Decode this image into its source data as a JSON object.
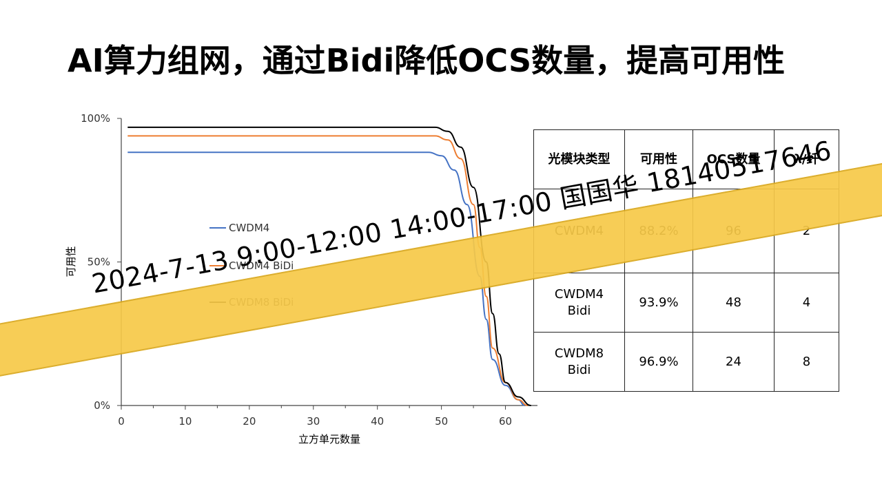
{
  "title": "AI算力组网，通过Bidi降低OCS数量，提高可用性",
  "chart_data": {
    "type": "line",
    "xlabel": "立方单元数量",
    "ylabel": "可用性",
    "xlim": [
      0,
      65
    ],
    "ylim": [
      0,
      100
    ],
    "x_ticks": [
      "0",
      "10",
      "20",
      "30",
      "40",
      "50",
      "60"
    ],
    "y_ticks": [
      "0%",
      "50%",
      "100%"
    ],
    "legend_position": "center-left",
    "series": [
      {
        "name": "CWDM4",
        "color": "#4472c4",
        "x": [
          1,
          10,
          20,
          30,
          40,
          48,
          50,
          52,
          54,
          56,
          57,
          58,
          60,
          62,
          63
        ],
        "values": [
          88.2,
          88.2,
          88.2,
          88.2,
          88.2,
          88.2,
          87,
          82,
          70,
          45,
          30,
          16,
          7,
          2,
          0
        ]
      },
      {
        "name": "CWDM4 BiDi",
        "color": "#ed7d31",
        "x": [
          1,
          10,
          20,
          30,
          40,
          49,
          51,
          53,
          55,
          56,
          57,
          58,
          60,
          62,
          63.5
        ],
        "values": [
          93.9,
          93.9,
          93.9,
          93.9,
          93.9,
          93.9,
          92.5,
          86,
          70,
          55,
          38,
          20,
          8,
          2,
          0
        ]
      },
      {
        "name": "CWDM8 BiDi",
        "color": "#000000",
        "x": [
          1,
          10,
          20,
          30,
          40,
          49,
          51,
          53,
          55,
          57,
          58,
          59,
          60,
          62,
          64
        ],
        "values": [
          96.9,
          96.9,
          96.9,
          96.9,
          96.9,
          96.9,
          95.5,
          90,
          76,
          50,
          32,
          18,
          8,
          3,
          0
        ]
      }
    ]
  },
  "table": {
    "headers": [
      "光模块类型",
      "可用性",
      "OCS数量",
      "λ/纤"
    ],
    "rows": [
      [
        "CWDM4",
        "88.2%",
        "96",
        "2"
      ],
      [
        "CWDM4\nBidi",
        "93.9%",
        "48",
        "4"
      ],
      [
        "CWDM8\nBidi",
        "96.9%",
        "24",
        "8"
      ]
    ]
  },
  "banner": {
    "text": "2024-7-13   9:00-12:00  14:00-17:00  国国华  18140517646",
    "color": "#f7c948"
  }
}
